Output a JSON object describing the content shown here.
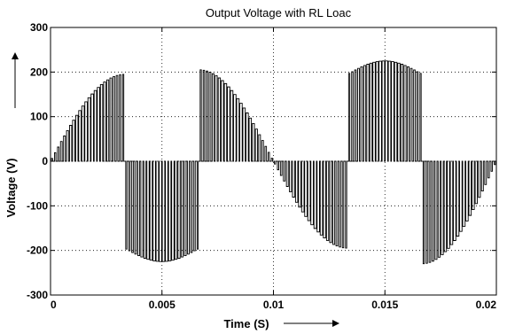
{
  "chart_data": {
    "type": "line",
    "title": "Output Voltage with RL Loac",
    "xlabel": "Time (S)",
    "ylabel": "Voltage (V)",
    "xlim": [
      0,
      0.02
    ],
    "ylim": [
      -300,
      300
    ],
    "grid": true,
    "x_ticks": [
      {
        "value": 0,
        "label": "0"
      },
      {
        "value": 0.005,
        "label": "0.005"
      },
      {
        "value": 0.01,
        "label": "0.01"
      },
      {
        "value": 0.015,
        "label": "0.015"
      },
      {
        "value": 0.02,
        "label": "0.02"
      }
    ],
    "y_ticks": [
      {
        "value": -300,
        "label": "-300"
      },
      {
        "value": -200,
        "label": "-200"
      },
      {
        "value": -100,
        "label": "-100"
      },
      {
        "value": 0,
        "label": "0"
      },
      {
        "value": 100,
        "label": "100"
      },
      {
        "value": 200,
        "label": "200"
      },
      {
        "value": 300,
        "label": "300"
      }
    ],
    "series": [
      {
        "segments": [
          {
            "t_start": 0,
            "t_end": 0.00333,
            "env_start": 0,
            "env_peak": 195,
            "env_end": 195,
            "shape": "rising"
          },
          {
            "t_start": 0.00333,
            "t_end": 0.00667,
            "env_start": -195,
            "env_peak": -225,
            "env_end": -195,
            "shape": "arch"
          },
          {
            "t_start": 0.00667,
            "t_end": 0.01,
            "env_start": 205,
            "env_peak": 205,
            "env_end": 0,
            "shape": "falling"
          },
          {
            "t_start": 0.01,
            "t_end": 0.01333,
            "env_start": 0,
            "env_peak": -195,
            "env_end": -195,
            "shape": "rising"
          },
          {
            "t_start": 0.01333,
            "t_end": 0.01667,
            "env_start": 195,
            "env_peak": 225,
            "env_end": 195,
            "shape": "arch"
          },
          {
            "t_start": 0.01667,
            "t_end": 0.02,
            "env_start": -230,
            "env_peak": -205,
            "env_end": 0,
            "shape": "falling"
          }
        ],
        "color": "#000000"
      }
    ]
  }
}
